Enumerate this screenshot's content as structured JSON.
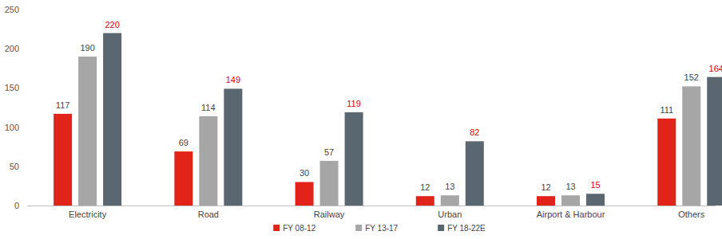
{
  "chart_data": {
    "type": "bar",
    "categories": [
      "Electricity",
      "Road",
      "Railway",
      "Urban",
      "Airport & Harbour",
      "Others"
    ],
    "series": [
      {
        "name": "FY 08-12",
        "color": "#e2231a",
        "values": [
          117,
          69,
          30,
          12,
          12,
          111
        ]
      },
      {
        "name": "FY 13-17",
        "color": "#a6a6a6",
        "values": [
          190,
          114,
          57,
          13,
          13,
          152
        ]
      },
      {
        "name": "FY 18-22E",
        "color": "#5b6770",
        "values": [
          220,
          149,
          119,
          82,
          15,
          164
        ]
      }
    ],
    "ylim": [
      0,
      250
    ],
    "yticks": [
      0,
      50,
      100,
      150,
      200,
      250
    ],
    "grid": false,
    "legend": "bottom",
    "data_labels": true
  }
}
